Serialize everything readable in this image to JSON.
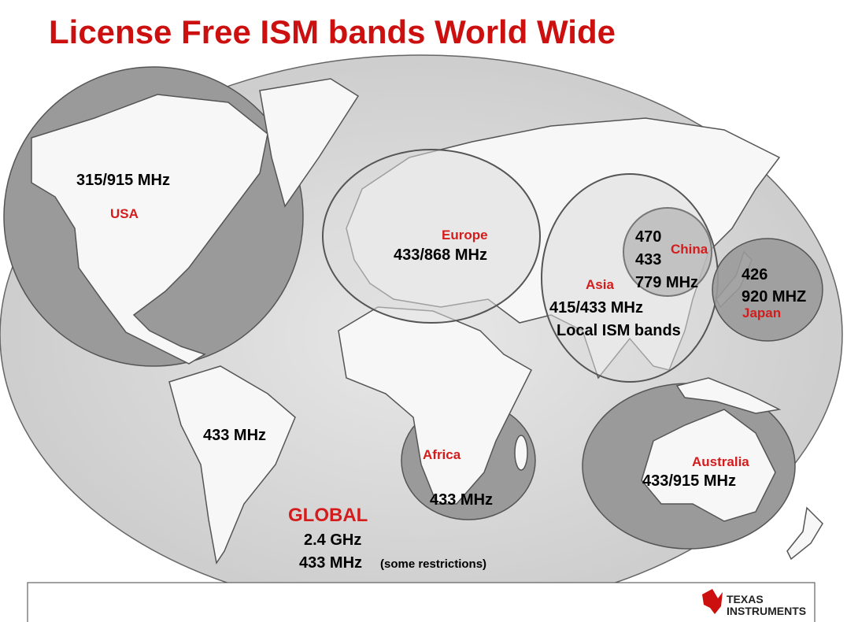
{
  "title": "License Free ISM bands World Wide",
  "regions": [
    {
      "name": "USA",
      "bands": [
        "315/915 MHz"
      ]
    },
    {
      "name": "Europe",
      "bands": [
        "433/868 MHz"
      ]
    },
    {
      "name": "Asia",
      "bands": [
        "415/433 MHz",
        "Local ISM bands"
      ]
    },
    {
      "name": "China",
      "bands": [
        "470",
        "433",
        "779 MHz"
      ]
    },
    {
      "name": "Japan",
      "bands": [
        "426",
        "920 MHZ"
      ]
    },
    {
      "name": null,
      "bands": [
        "433 MHz"
      ]
    },
    {
      "name": "Africa",
      "bands": [
        "433 MHz"
      ]
    },
    {
      "name": "Australia",
      "bands": [
        "433/915 MHz"
      ]
    }
  ],
  "global": {
    "name": "GLOBAL",
    "bands": [
      "2.4 GHz",
      "433 MHz"
    ],
    "note": "(some restrictions)"
  },
  "logo": {
    "line1": "TEXAS",
    "line2": "INSTRUMENTS"
  }
}
